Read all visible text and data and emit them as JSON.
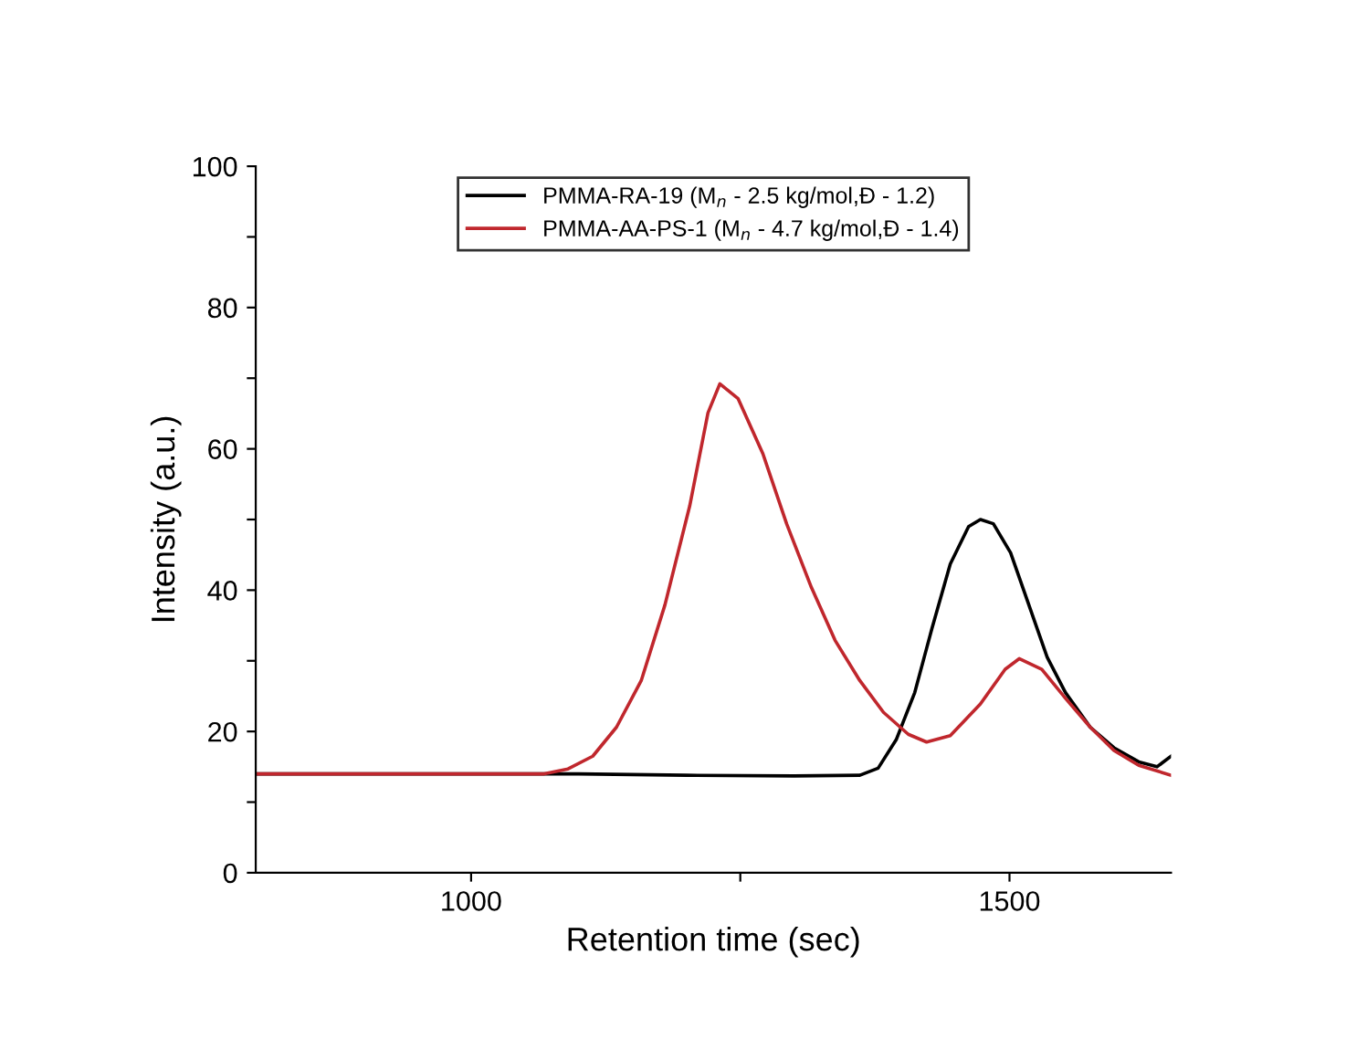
{
  "chart_data": {
    "type": "line",
    "xlabel": "Retention time (sec)",
    "ylabel": "Intensity (a.u.)",
    "xlim": [
      800,
      1650
    ],
    "xticks": [
      1000,
      {
        "value": 1250,
        "label": null
      },
      1500
    ],
    "ylim": [
      0,
      100
    ],
    "yticks": [
      0,
      {
        "value": 10,
        "label": null
      },
      20,
      {
        "value": 30,
        "label": null
      },
      40,
      {
        "value": 50,
        "label": null
      },
      60,
      {
        "value": 70,
        "label": null
      },
      80,
      {
        "value": 90,
        "label": null
      },
      100
    ],
    "grid": false,
    "legend": "top",
    "marker": "none",
    "line_style": "solid",
    "series": [
      {
        "name": "PMMA-RA-19 (M$_{n}$ - 2.5 kg/mol,Đ - 1.2)",
        "color": "#000000",
        "x": [
          800,
          1100,
          1200,
          1300,
          1361,
          1378,
          1395,
          1412,
          1428,
          1445,
          1462,
          1473,
          1485,
          1501,
          1518,
          1535,
          1552,
          1575,
          1597,
          1620,
          1637,
          1650
        ],
        "values": [
          14.0,
          14.0,
          13.8,
          13.7,
          13.8,
          14.8,
          18.9,
          25.5,
          34.6,
          43.7,
          49.0,
          50.0,
          49.4,
          45.3,
          37.9,
          30.5,
          25.5,
          20.6,
          17.7,
          15.7,
          15.0,
          16.5
        ]
      },
      {
        "name": "PMMA-AA-PS-1 (M$_{n}$ - 4.7 kg/mol,Đ - 1.4)",
        "color": "#c0272d",
        "x": [
          800,
          1068,
          1090,
          1113,
          1135,
          1158,
          1180,
          1203,
          1220,
          1231,
          1248,
          1271,
          1293,
          1316,
          1338,
          1361,
          1383,
          1406,
          1423,
          1445,
          1473,
          1496,
          1509,
          1530,
          1552,
          1575,
          1597,
          1620,
          1650
        ],
        "values": [
          14.0,
          14.0,
          14.7,
          16.5,
          20.6,
          27.2,
          37.9,
          51.9,
          65.1,
          69.2,
          67.1,
          59.3,
          49.4,
          40.4,
          32.9,
          27.2,
          22.7,
          19.6,
          18.5,
          19.4,
          23.9,
          28.8,
          30.3,
          28.8,
          24.7,
          20.6,
          17.3,
          15.2,
          13.8
        ]
      }
    ]
  }
}
